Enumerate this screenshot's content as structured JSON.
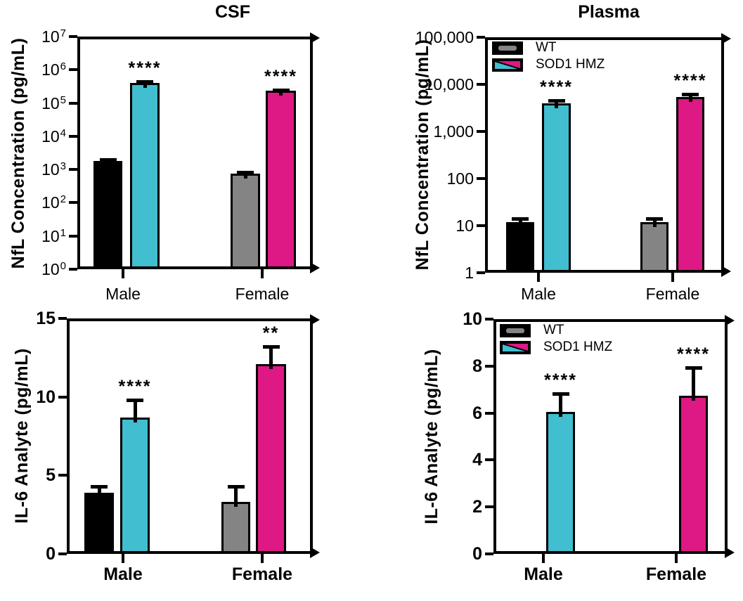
{
  "figure": {
    "column_titles": [
      "CSF",
      "Plasma"
    ],
    "background": "#ffffff"
  },
  "colors": {
    "wt_male": "#000000",
    "wt_female": "#848484",
    "sod1_male": "#41BECF",
    "sod1_female": "#DE1884",
    "axis": "#000000"
  },
  "legend": {
    "entries": [
      {
        "label": "WT",
        "swatch": "wt"
      },
      {
        "label": "SOD1 HMZ",
        "swatch": "sod1"
      }
    ]
  },
  "chart_data": [
    {
      "id": "csf-nfl",
      "type": "bar",
      "panel": "CSF",
      "title": "CSF",
      "ylabel": "NfL Concentration (pg/mL)",
      "yscale": "log",
      "ylim": [
        1,
        10000000
      ],
      "ytick_values": [
        1,
        10,
        100,
        1000,
        10000,
        100000,
        1000000,
        10000000
      ],
      "ytick_labels": [
        "10^0",
        "10^1",
        "10^2",
        "10^3",
        "10^4",
        "10^5",
        "10^6",
        "10^7"
      ],
      "categories": [
        "Male",
        "Female"
      ],
      "groups": [
        "WT",
        "SOD1 HMZ"
      ],
      "bars": [
        {
          "category": "Male",
          "group": "WT",
          "value": 1800,
          "error_top": 2200,
          "color": "wt_male",
          "significance": ""
        },
        {
          "category": "Male",
          "group": "SOD1 HMZ",
          "value": 400000,
          "error_top": 500000,
          "color": "sod1_male",
          "significance": "****"
        },
        {
          "category": "Female",
          "group": "WT",
          "value": 750,
          "error_top": 900,
          "color": "wt_female",
          "significance": ""
        },
        {
          "category": "Female",
          "group": "SOD1 HMZ",
          "value": 230000,
          "error_top": 270000,
          "color": "sod1_female",
          "significance": "****"
        }
      ],
      "legend_visible": false
    },
    {
      "id": "plasma-nfl",
      "type": "bar",
      "panel": "Plasma",
      "title": "Plasma",
      "ylabel": "NfL Concentration (pg/mL)",
      "yscale": "log",
      "ylim": [
        1,
        100000
      ],
      "ytick_values": [
        1,
        10,
        100,
        1000,
        10000,
        100000
      ],
      "ytick_labels": [
        "1",
        "10",
        "100",
        "1,000",
        "10,000",
        "100,000"
      ],
      "categories": [
        "Male",
        "Female"
      ],
      "groups": [
        "WT",
        "SOD1 HMZ"
      ],
      "bars": [
        {
          "category": "Male",
          "group": "WT",
          "value": 12,
          "error_top": 15,
          "color": "wt_male",
          "significance": ""
        },
        {
          "category": "Male",
          "group": "SOD1 HMZ",
          "value": 4000,
          "error_top": 4900,
          "color": "sod1_male",
          "significance": "****"
        },
        {
          "category": "Female",
          "group": "WT",
          "value": 12,
          "error_top": 15,
          "color": "wt_female",
          "significance": ""
        },
        {
          "category": "Female",
          "group": "SOD1 HMZ",
          "value": 5400,
          "error_top": 6600,
          "color": "sod1_female",
          "significance": "****"
        }
      ],
      "legend_visible": true
    },
    {
      "id": "csf-il6",
      "type": "bar",
      "panel": "CSF",
      "title": "",
      "ylabel": "IL-6 Analyte (pg/mL)",
      "yscale": "linear",
      "ylim": [
        0,
        15
      ],
      "ytick_values": [
        0,
        5,
        10,
        15
      ],
      "ytick_labels": [
        "0",
        "5",
        "10",
        "15"
      ],
      "categories": [
        "Male",
        "Female"
      ],
      "groups": [
        "WT",
        "SOD1 HMZ"
      ],
      "bars": [
        {
          "category": "Male",
          "group": "WT",
          "value": 3.9,
          "error_top": 4.4,
          "color": "wt_male",
          "significance": ""
        },
        {
          "category": "Male",
          "group": "SOD1 HMZ",
          "value": 8.7,
          "error_top": 9.9,
          "color": "sod1_male",
          "significance": "****"
        },
        {
          "category": "Female",
          "group": "WT",
          "value": 3.3,
          "error_top": 4.4,
          "color": "wt_female",
          "significance": ""
        },
        {
          "category": "Female",
          "group": "SOD1 HMZ",
          "value": 12.1,
          "error_top": 13.3,
          "color": "sod1_female",
          "significance": "**"
        }
      ],
      "legend_visible": false
    },
    {
      "id": "plasma-il6",
      "type": "bar",
      "panel": "Plasma",
      "title": "",
      "ylabel": "IL-6 Analyte (pg/mL)",
      "yscale": "linear",
      "ylim": [
        0,
        10
      ],
      "ytick_values": [
        0,
        2,
        4,
        6,
        8,
        10
      ],
      "ytick_labels": [
        "0",
        "2",
        "4",
        "6",
        "8",
        "10"
      ],
      "categories": [
        "Male",
        "Female"
      ],
      "groups": [
        "WT",
        "SOD1 HMZ"
      ],
      "bars": [
        {
          "category": "Male",
          "group": "SOD1 HMZ",
          "value": 6.05,
          "error_top": 6.9,
          "color": "sod1_male",
          "significance": "****"
        },
        {
          "category": "Female",
          "group": "SOD1 HMZ",
          "value": 6.75,
          "error_top": 8.0,
          "color": "sod1_female",
          "significance": "****"
        }
      ],
      "legend_visible": true
    }
  ]
}
